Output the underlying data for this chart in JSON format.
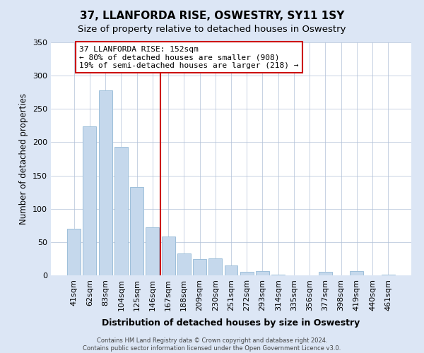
{
  "title": "37, LLANFORDA RISE, OSWESTRY, SY11 1SY",
  "subtitle": "Size of property relative to detached houses in Oswestry",
  "xlabel": "Distribution of detached houses by size in Oswestry",
  "ylabel": "Number of detached properties",
  "bar_labels": [
    "41sqm",
    "62sqm",
    "83sqm",
    "104sqm",
    "125sqm",
    "146sqm",
    "167sqm",
    "188sqm",
    "209sqm",
    "230sqm",
    "251sqm",
    "272sqm",
    "293sqm",
    "314sqm",
    "335sqm",
    "356sqm",
    "377sqm",
    "398sqm",
    "419sqm",
    "440sqm",
    "461sqm"
  ],
  "bar_values": [
    70,
    224,
    278,
    193,
    133,
    72,
    58,
    33,
    24,
    25,
    15,
    5,
    6,
    1,
    0,
    0,
    5,
    0,
    6,
    0,
    1
  ],
  "bar_color": "#c5d8ec",
  "bar_edge_color": "#9dbfda",
  "vline_x_index": 5,
  "vline_color": "#cc0000",
  "annotation_line1": "37 LLANFORDA RISE: 152sqm",
  "annotation_line2": "← 80% of detached houses are smaller (908)",
  "annotation_line3": "19% of semi-detached houses are larger (218) →",
  "annotation_box_color": "#ffffff",
  "annotation_box_edge": "#cc0000",
  "ylim": [
    0,
    350
  ],
  "yticks": [
    0,
    50,
    100,
    150,
    200,
    250,
    300,
    350
  ],
  "footer_line1": "Contains HM Land Registry data © Crown copyright and database right 2024.",
  "footer_line2": "Contains public sector information licensed under the Open Government Licence v3.0.",
  "background_color": "#dce6f5",
  "plot_bg_color": "#dce6f5",
  "inner_plot_bg": "#ffffff",
  "title_fontsize": 11,
  "subtitle_fontsize": 9.5
}
